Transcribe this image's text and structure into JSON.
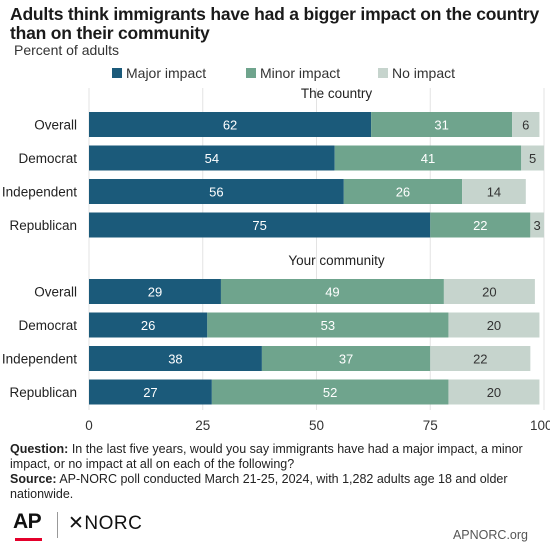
{
  "title": "Adults think immigrants have had a bigger impact on the country than on their community",
  "subtitle": "Percent of adults",
  "legend": [
    {
      "label": "Major impact",
      "color": "#1b5a7a"
    },
    {
      "label": "Minor impact",
      "color": "#6fa48d"
    },
    {
      "label": "No impact",
      "color": "#c6d4cd"
    }
  ],
  "chart_data": {
    "type": "bar",
    "orientation": "horizontal",
    "stacked": true,
    "xlim": [
      0,
      100
    ],
    "x_ticks": [
      "0",
      "25",
      "50",
      "75",
      "100%"
    ],
    "panels": [
      {
        "title": "The country",
        "categories": [
          "Overall",
          "Democrat",
          "Independent",
          "Republican"
        ],
        "series": [
          {
            "name": "Major impact",
            "values": [
              62,
              54,
              56,
              75
            ]
          },
          {
            "name": "Minor impact",
            "values": [
              31,
              41,
              26,
              22
            ]
          },
          {
            "name": "No impact",
            "values": [
              6,
              5,
              14,
              3
            ]
          }
        ]
      },
      {
        "title": "Your community",
        "categories": [
          "Overall",
          "Democrat",
          "Independent",
          "Republican"
        ],
        "series": [
          {
            "name": "Major impact",
            "values": [
              29,
              26,
              38,
              27
            ]
          },
          {
            "name": "Minor impact",
            "values": [
              49,
              53,
              37,
              52
            ]
          },
          {
            "name": "No impact",
            "values": [
              20,
              20,
              22,
              20
            ]
          }
        ]
      }
    ]
  },
  "notes": {
    "question_label": "Question:",
    "question_text": " In the last five years, would you say immigrants have had a major impact, a minor impact, or no impact at all on each of the following?",
    "source_label": "Source:",
    "source_text": " AP-NORC poll conducted March 21-25, 2024, with 1,282 adults age 18 and older nationwide."
  },
  "footer": {
    "logo_ap": "AP",
    "logo_norc": "✕NORC",
    "site": "APNORC.org"
  }
}
